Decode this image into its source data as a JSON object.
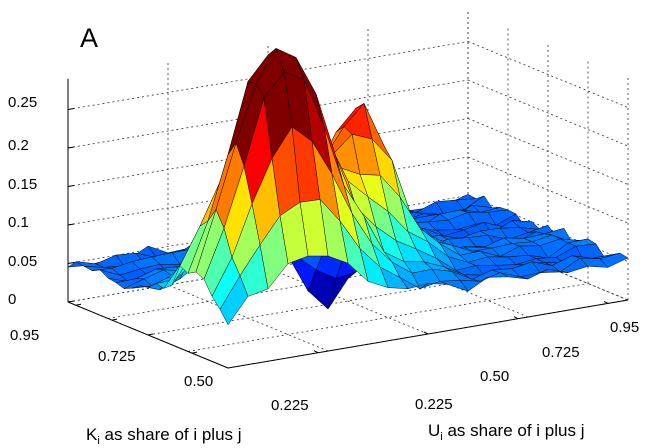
{
  "chart_data": {
    "type": "surface",
    "panel_label": "A",
    "xlabel": "K",
    "xlabel_sub": "i",
    "xlabel_rest": " as share of i plus j",
    "ylabel": "U",
    "ylabel_sub": "i",
    "ylabel_rest": " as share of i plus j",
    "zlim": [
      0,
      0.25
    ],
    "z_ticks": [
      "0",
      "0.05",
      "0.1",
      "0.15",
      "0.2",
      "0.25"
    ],
    "x_ticks": [
      "0.95",
      "0.725",
      "0.50",
      "0.225"
    ],
    "y_ticks": [
      "0.225",
      "0.50",
      "0.725",
      "0.95"
    ],
    "grid": true,
    "colormap": "jet",
    "u_values": [
      0.0,
      0.05,
      0.1,
      0.15,
      0.2,
      0.25,
      0.3,
      0.35,
      0.4,
      0.45,
      0.5,
      0.55,
      0.6,
      0.65,
      0.7,
      0.75,
      0.8,
      0.85,
      0.9,
      0.95,
      1.0
    ],
    "k_values": [
      0.0,
      0.05,
      0.1,
      0.15,
      0.2,
      0.25,
      0.3,
      0.35,
      0.4,
      0.45,
      0.5,
      0.55,
      0.6,
      0.65,
      0.7,
      0.75,
      0.8,
      0.85,
      0.9,
      0.95,
      1.0
    ],
    "peaks": [
      {
        "u": 0.2,
        "k": 0.2,
        "height": 0.3,
        "spread_u": 0.11,
        "spread_k": 0.12
      },
      {
        "u": 0.5,
        "k": 0.42,
        "height": 0.16,
        "spread_u": 0.07,
        "spread_k": 0.09
      },
      {
        "u": 0.35,
        "k": 0.35,
        "height": 0.09,
        "spread_u": 0.16,
        "spread_k": 0.16
      },
      {
        "u": 0.55,
        "k": 0.75,
        "height": -0.09,
        "spread_u": 0.05,
        "spread_k": 0.05
      }
    ],
    "baseline": 0.05
  }
}
